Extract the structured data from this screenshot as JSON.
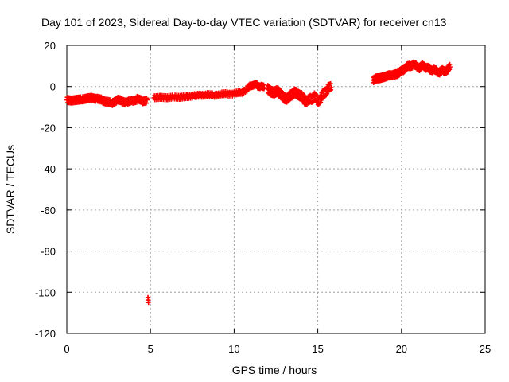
{
  "chart_data": {
    "type": "scatter",
    "title": "Day 101 of 2023, Sidereal Day-to-day VTEC variation (SDTVAR) for receiver cn13",
    "xlabel": "GPS time / hours",
    "ylabel": "SDTVAR / TECUs",
    "xlim": [
      0,
      25
    ],
    "ylim": [
      -120,
      20
    ],
    "xticks": [
      0,
      5,
      10,
      15,
      20,
      25
    ],
    "yticks": [
      20,
      0,
      -20,
      -40,
      -60,
      -80,
      -100,
      -120
    ],
    "grid": true,
    "marker": "plus",
    "series": [
      {
        "name": "SDTVAR",
        "color": "#ff0000",
        "segments": [
          {
            "x": [
              0.0,
              0.3,
              0.6,
              0.9,
              1.2,
              1.5,
              1.8,
              2.1,
              2.4,
              2.7,
              3.0,
              3.3,
              3.6,
              3.9,
              4.2,
              4.5,
              4.8
            ],
            "y": [
              -6.5,
              -6.8,
              -6.5,
              -6.2,
              -5.8,
              -5.5,
              -6.0,
              -6.5,
              -7.5,
              -8.0,
              -6.5,
              -7.0,
              -7.8,
              -6.8,
              -6.2,
              -7.0,
              -6.5
            ],
            "spread": 1.5
          },
          {
            "x": [
              5.2,
              5.6,
              6.0,
              6.4,
              6.8,
              7.2,
              7.6,
              8.0,
              8.4,
              8.8,
              9.2,
              9.6,
              10.0,
              10.4,
              10.8,
              11.0,
              11.2,
              11.4,
              11.6,
              11.8
            ],
            "y": [
              -5.5,
              -5.2,
              -5.5,
              -5.0,
              -5.3,
              -4.8,
              -4.5,
              -4.2,
              -4.0,
              -4.2,
              -3.8,
              -3.5,
              -3.5,
              -3.0,
              -1.0,
              0.5,
              1.0,
              0.5,
              0.0,
              -0.5
            ],
            "spread": 1.2
          },
          {
            "x": [
              12.0,
              12.2,
              12.4,
              12.6,
              12.8,
              13.0,
              13.2,
              13.4,
              13.6,
              13.8,
              14.0,
              14.2,
              14.4,
              14.6,
              14.8,
              15.0,
              15.2,
              15.4,
              15.6,
              15.8
            ],
            "y": [
              -1.0,
              -2.5,
              -3.0,
              -2.0,
              -4.0,
              -5.5,
              -6.0,
              -4.0,
              -3.0,
              -3.5,
              -4.5,
              -6.5,
              -7.0,
              -6.0,
              -5.0,
              -7.0,
              -5.5,
              -3.0,
              -1.0,
              -0.5
            ],
            "spread": 2.0
          },
          {
            "x": [
              18.3,
              18.5,
              18.7,
              18.9,
              19.1,
              19.3,
              19.5,
              19.7,
              19.9,
              20.1,
              20.3,
              20.5,
              20.7,
              20.9,
              21.1,
              21.3,
              21.5,
              21.7,
              21.9,
              22.1,
              22.3,
              22.5,
              22.7,
              22.9
            ],
            "y": [
              3.0,
              4.0,
              4.0,
              4.5,
              5.0,
              5.5,
              5.5,
              6.0,
              7.0,
              8.0,
              9.5,
              10.0,
              10.5,
              10.0,
              9.0,
              10.5,
              9.0,
              8.5,
              8.0,
              7.5,
              7.0,
              8.0,
              7.5,
              9.5
            ],
            "spread": 1.5
          }
        ],
        "outliers": {
          "x": [
            4.85,
            4.87,
            4.88
          ],
          "y": [
            -102.5,
            -103.8,
            -105.0
          ]
        }
      }
    ]
  }
}
